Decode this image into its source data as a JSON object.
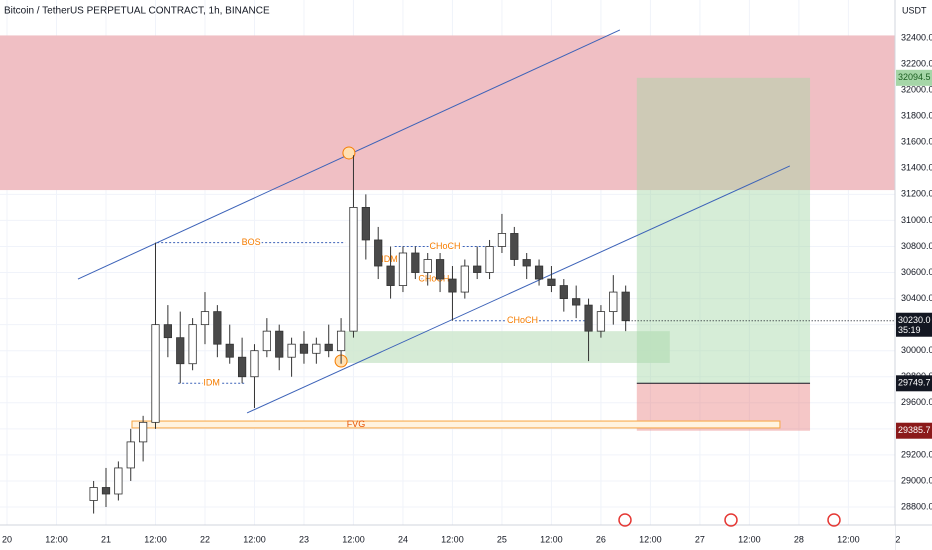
{
  "chart_data": {
    "type": "candlestick",
    "title": "Bitcoin / TetherUS PERPETUAL CONTRACT, 1h, BINANCE",
    "y_unit": "USDT",
    "xlim": [
      -1.7,
      215.3
    ],
    "ylim": [
      28662,
      32692
    ],
    "grid": true,
    "up_color": "#ffffff",
    "down_color": "#4a4a4a",
    "xticks": [
      {
        "value": 0,
        "label": "20"
      },
      {
        "value": 12,
        "label": "12:00"
      },
      {
        "value": 24,
        "label": "21"
      },
      {
        "value": 36,
        "label": "12:00"
      },
      {
        "value": 48,
        "label": "22"
      },
      {
        "value": 60,
        "label": "12:00"
      },
      {
        "value": 72,
        "label": "23"
      },
      {
        "value": 84,
        "label": "12:00"
      },
      {
        "value": 96,
        "label": "24"
      },
      {
        "value": 108,
        "label": "12:00"
      },
      {
        "value": 120,
        "label": "25"
      },
      {
        "value": 132,
        "label": "12:00"
      },
      {
        "value": 144,
        "label": "26"
      },
      {
        "value": 156,
        "label": "12:00"
      },
      {
        "value": 168,
        "label": "27"
      },
      {
        "value": 180,
        "label": "12:00"
      },
      {
        "value": 192,
        "label": "28"
      },
      {
        "value": 204,
        "label": "12:00"
      },
      {
        "value": 216,
        "label": "2"
      }
    ],
    "yticks": [
      {
        "value": 28800,
        "label": "28800.0"
      },
      {
        "value": 29000,
        "label": "29000.0"
      },
      {
        "value": 29200,
        "label": "29200.0"
      },
      {
        "value": 29400,
        "label": "29400.0"
      },
      {
        "value": 29600,
        "label": "29600.0"
      },
      {
        "value": 29800,
        "label": "29800.0"
      },
      {
        "value": 30000,
        "label": "30000.0"
      },
      {
        "value": 30200,
        "label": "30200.0"
      },
      {
        "value": 30400,
        "label": "30400.0"
      },
      {
        "value": 30600,
        "label": "30600.0"
      },
      {
        "value": 30800,
        "label": "30800.0"
      },
      {
        "value": 31000,
        "label": "31000.0"
      },
      {
        "value": 31200,
        "label": "31200.0"
      },
      {
        "value": 31400,
        "label": "31400.0"
      },
      {
        "value": 31600,
        "label": "31600.0"
      },
      {
        "value": 31800,
        "label": "31800.0"
      },
      {
        "value": 32000,
        "label": "32000.0"
      },
      {
        "value": 32200,
        "label": "32200.0"
      },
      {
        "value": 32400,
        "label": "32400.0"
      }
    ],
    "candles": [
      {
        "x": 21,
        "open": 28850,
        "high": 29000,
        "low": 28750,
        "close": 28950
      },
      {
        "x": 24,
        "open": 28950,
        "high": 29100,
        "low": 28800,
        "close": 28900
      },
      {
        "x": 27,
        "open": 28900,
        "high": 29150,
        "low": 28850,
        "close": 29100
      },
      {
        "x": 30,
        "open": 29100,
        "high": 29400,
        "low": 29000,
        "close": 29300
      },
      {
        "x": 33,
        "open": 29300,
        "high": 29500,
        "low": 29150,
        "close": 29450
      },
      {
        "x": 36,
        "open": 29450,
        "high": 30830,
        "low": 29400,
        "close": 30200
      },
      {
        "x": 39,
        "open": 30200,
        "high": 30350,
        "low": 29950,
        "close": 30100
      },
      {
        "x": 42,
        "open": 30100,
        "high": 30300,
        "low": 29750,
        "close": 29900
      },
      {
        "x": 45,
        "open": 29900,
        "high": 30250,
        "low": 29850,
        "close": 30200
      },
      {
        "x": 48,
        "open": 30200,
        "high": 30450,
        "low": 30050,
        "close": 30300
      },
      {
        "x": 51,
        "open": 30300,
        "high": 30350,
        "low": 29950,
        "close": 30050
      },
      {
        "x": 54,
        "open": 30050,
        "high": 30200,
        "low": 29900,
        "close": 29950
      },
      {
        "x": 57,
        "open": 29950,
        "high": 30100,
        "low": 29750,
        "close": 29800
      },
      {
        "x": 60,
        "open": 29800,
        "high": 30050,
        "low": 29560,
        "close": 30000
      },
      {
        "x": 63,
        "open": 30000,
        "high": 30250,
        "low": 29950,
        "close": 30150
      },
      {
        "x": 66,
        "open": 30150,
        "high": 30200,
        "low": 29850,
        "close": 29950
      },
      {
        "x": 69,
        "open": 29950,
        "high": 30100,
        "low": 29800,
        "close": 30050
      },
      {
        "x": 72,
        "open": 30050,
        "high": 30150,
        "low": 29900,
        "close": 29980
      },
      {
        "x": 75,
        "open": 29980,
        "high": 30100,
        "low": 29900,
        "close": 30050
      },
      {
        "x": 78,
        "open": 30050,
        "high": 30200,
        "low": 29950,
        "close": 30000
      },
      {
        "x": 81,
        "open": 30000,
        "high": 30250,
        "low": 29900,
        "close": 30150
      },
      {
        "x": 84,
        "open": 30150,
        "high": 31500,
        "low": 30100,
        "close": 31100
      },
      {
        "x": 87,
        "open": 31100,
        "high": 31200,
        "low": 30700,
        "close": 30850
      },
      {
        "x": 90,
        "open": 30850,
        "high": 30950,
        "low": 30550,
        "close": 30650
      },
      {
        "x": 93,
        "open": 30650,
        "high": 30800,
        "low": 30400,
        "close": 30500
      },
      {
        "x": 96,
        "open": 30500,
        "high": 30800,
        "low": 30450,
        "close": 30750
      },
      {
        "x": 99,
        "open": 30750,
        "high": 30800,
        "low": 30550,
        "close": 30600
      },
      {
        "x": 102,
        "open": 30600,
        "high": 30750,
        "low": 30500,
        "close": 30700
      },
      {
        "x": 105,
        "open": 30700,
        "high": 30750,
        "low": 30450,
        "close": 30550
      },
      {
        "x": 108,
        "open": 30550,
        "high": 30650,
        "low": 30230,
        "close": 30450
      },
      {
        "x": 111,
        "open": 30450,
        "high": 30700,
        "low": 30400,
        "close": 30650
      },
      {
        "x": 114,
        "open": 30650,
        "high": 30800,
        "low": 30550,
        "close": 30600
      },
      {
        "x": 117,
        "open": 30600,
        "high": 30850,
        "low": 30550,
        "close": 30800
      },
      {
        "x": 120,
        "open": 30800,
        "high": 31050,
        "low": 30750,
        "close": 30900
      },
      {
        "x": 123,
        "open": 30900,
        "high": 30950,
        "low": 30650,
        "close": 30700
      },
      {
        "x": 126,
        "open": 30700,
        "high": 30750,
        "low": 30550,
        "close": 30650
      },
      {
        "x": 129,
        "open": 30650,
        "high": 30700,
        "low": 30500,
        "close": 30550
      },
      {
        "x": 132,
        "open": 30550,
        "high": 30650,
        "low": 30450,
        "close": 30500
      },
      {
        "x": 135,
        "open": 30500,
        "high": 30550,
        "low": 30300,
        "close": 30400
      },
      {
        "x": 138,
        "open": 30400,
        "high": 30500,
        "low": 30250,
        "close": 30350
      },
      {
        "x": 141,
        "open": 30350,
        "high": 30400,
        "low": 29920,
        "close": 30150
      },
      {
        "x": 144,
        "open": 30150,
        "high": 30350,
        "low": 30100,
        "close": 30300
      },
      {
        "x": 147,
        "open": 30300,
        "high": 30580,
        "low": 30200,
        "close": 30450
      },
      {
        "x": 150,
        "open": 30450,
        "high": 30500,
        "low": 30150,
        "close": 30230
      }
    ],
    "supply_zone": {
      "top": 32420,
      "bottom": 31233,
      "color": "#f0bfc4"
    },
    "demand_zone": {
      "x_from": 82,
      "x_to": 160.7,
      "top": 30150,
      "bottom": 29906,
      "color": "#cfe8cf"
    },
    "fvg": {
      "label": "FVG",
      "x_from": 30.3,
      "x_to": 187.4,
      "top": 29460,
      "bottom": 29407,
      "color": "#f7a440"
    },
    "channel": [
      {
        "x": [
          17.2,
          148.6
        ],
        "y": [
          30550,
          32462
        ],
        "color": "#3c62b8"
      },
      {
        "x": [
          58.2,
          189.8
        ],
        "y": [
          29522,
          31418
        ],
        "color": "#3c62b8"
      }
    ],
    "annotations": [
      {
        "label": "BOS",
        "x_from": 36.4,
        "x_to": 82,
        "y": 30830
      },
      {
        "label": "IDM",
        "x_from": 41.5,
        "x_to": 57.7,
        "y": 29750
      },
      {
        "label": "CHoCH",
        "x_from": 94,
        "x_to": 118.4,
        "y": 30800
      },
      {
        "label": "CHoCH",
        "x_from": 100.5,
        "x_to": 106.5,
        "y": 30550
      },
      {
        "label": "IDM",
        "x_from": 91.5,
        "x_to": 94,
        "y": 30700
      },
      {
        "label": "CHoCH",
        "x_from": 108.6,
        "x_to": 141.4,
        "y": 30230
      }
    ],
    "markers": [
      {
        "x": 82.9,
        "y": 31518
      },
      {
        "x": 81,
        "y": 29921
      }
    ],
    "position": {
      "x_from": 152.7,
      "x_to": 194.7,
      "target": 32094.5,
      "entry": 29749.7,
      "stop": 29385.7
    },
    "last_price": {
      "value": 30230,
      "label": "30230.0"
    },
    "countdown": "35:19"
  }
}
